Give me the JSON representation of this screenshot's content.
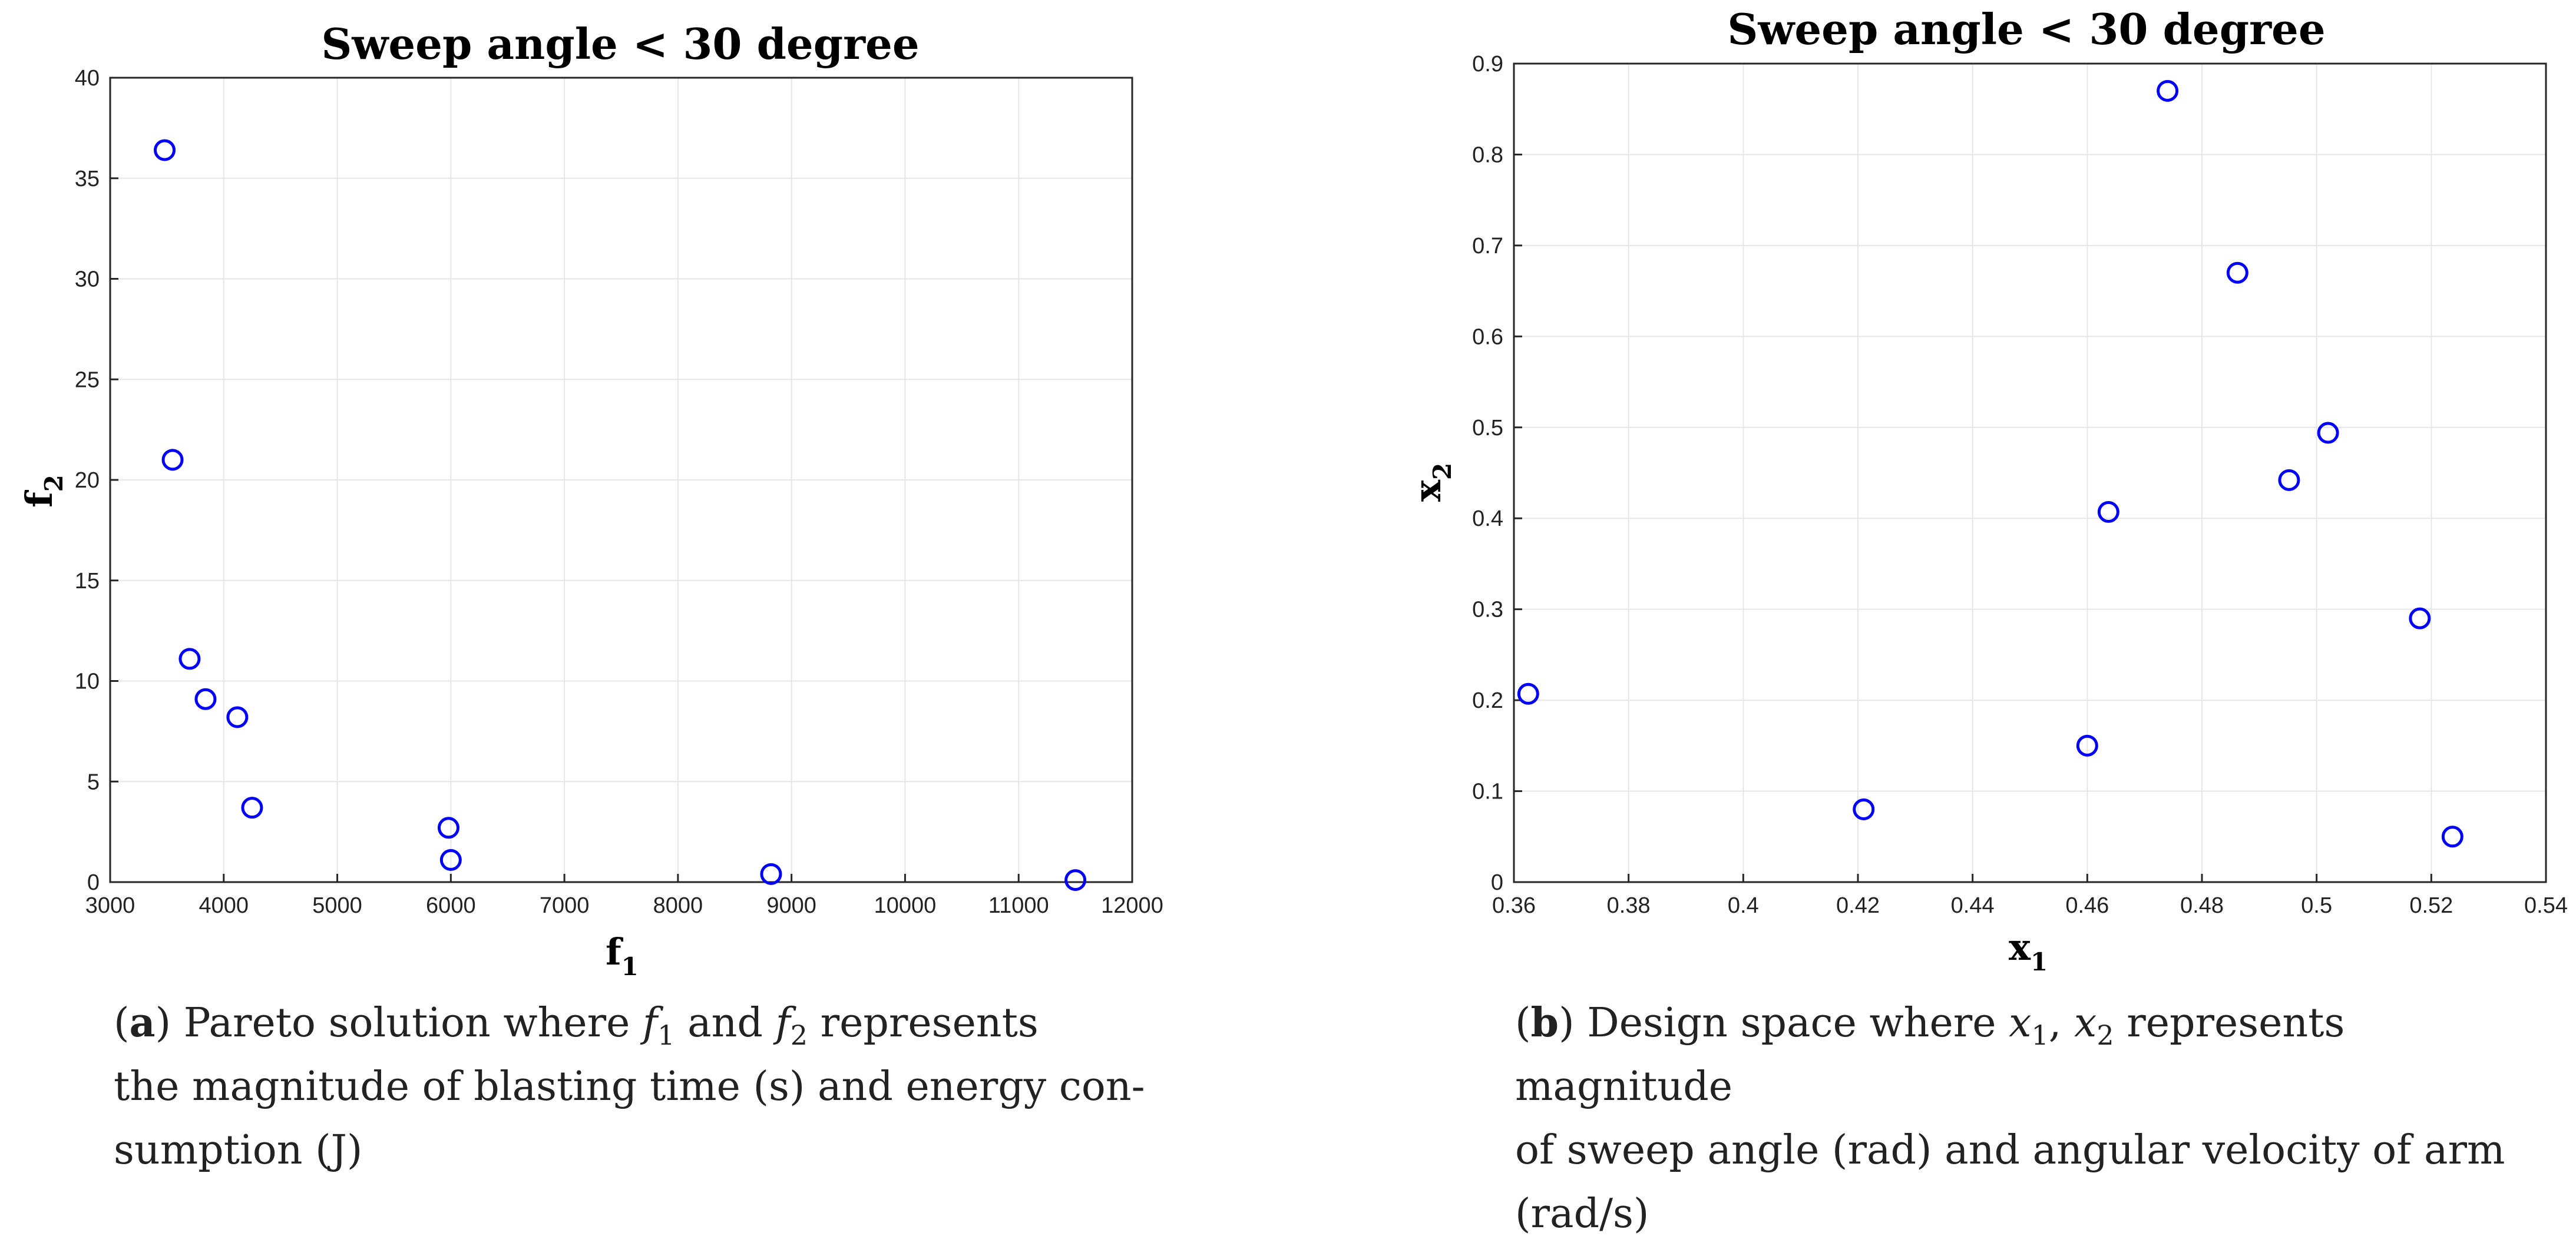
{
  "chart_data": [
    {
      "type": "scatter",
      "title": "Sweep angle < 30 degree",
      "xlabel": "f",
      "xlabel_sub": "1",
      "ylabel": "f",
      "ylabel_sub": "2",
      "xlim": [
        3000,
        12000
      ],
      "ylim": [
        0,
        40
      ],
      "xticks": [
        3000,
        4000,
        5000,
        6000,
        7000,
        8000,
        9000,
        10000,
        11000,
        12000
      ],
      "yticks": [
        0,
        5,
        10,
        15,
        20,
        25,
        30,
        35,
        40
      ],
      "grid": true,
      "marker": "circle-open",
      "color": "#0000ff",
      "points": [
        {
          "x": 3480,
          "y": 36.4
        },
        {
          "x": 3550,
          "y": 21.0
        },
        {
          "x": 3700,
          "y": 11.1
        },
        {
          "x": 3840,
          "y": 9.1
        },
        {
          "x": 4120,
          "y": 8.2
        },
        {
          "x": 4250,
          "y": 3.7
        },
        {
          "x": 5980,
          "y": 2.7
        },
        {
          "x": 6000,
          "y": 1.1
        },
        {
          "x": 8820,
          "y": 0.4
        },
        {
          "x": 11500,
          "y": 0.1
        }
      ]
    },
    {
      "type": "scatter",
      "title": "Sweep angle < 30 degree",
      "xlabel": "x",
      "xlabel_sub": "1",
      "ylabel": "x",
      "ylabel_sub": "2",
      "xlim": [
        0.36,
        0.54
      ],
      "ylim": [
        0,
        0.9
      ],
      "xticks": [
        0.36,
        0.38,
        0.4,
        0.42,
        0.44,
        0.46,
        0.48,
        0.5,
        0.52,
        0.54
      ],
      "yticks": [
        0,
        0.1,
        0.2,
        0.3,
        0.4,
        0.5,
        0.6,
        0.7,
        0.8,
        0.9
      ],
      "grid": true,
      "marker": "circle-open",
      "color": "#0000ff",
      "points": [
        {
          "x": 0.3625,
          "y": 0.207
        },
        {
          "x": 0.421,
          "y": 0.08
        },
        {
          "x": 0.46,
          "y": 0.15
        },
        {
          "x": 0.4637,
          "y": 0.407
        },
        {
          "x": 0.474,
          "y": 0.87
        },
        {
          "x": 0.4862,
          "y": 0.67
        },
        {
          "x": 0.4952,
          "y": 0.442
        },
        {
          "x": 0.502,
          "y": 0.494
        },
        {
          "x": 0.518,
          "y": 0.29
        },
        {
          "x": 0.5237,
          "y": 0.05
        }
      ]
    }
  ],
  "captions": {
    "a": {
      "label": "a",
      "line1_pre": ") Pareto solution where ",
      "f1_var": "f",
      "f1_sub": "1",
      "mid": " and ",
      "f2_var": "f",
      "f2_sub": "2",
      "line1_post": " represents",
      "line2": "the magnitude of blasting time (s) and energy con-",
      "line3": "sumption (J)"
    },
    "b": {
      "label": "b",
      "line1_pre": ") Design space where ",
      "x1_var": "x",
      "x1_sub": "1",
      "sep": ", ",
      "x2_var": "x",
      "x2_sub": "2",
      "line1_post": " represents magnitude",
      "line2": "of sweep angle (rad) and angular velocity of arm",
      "line3": "(rad/s)"
    }
  }
}
